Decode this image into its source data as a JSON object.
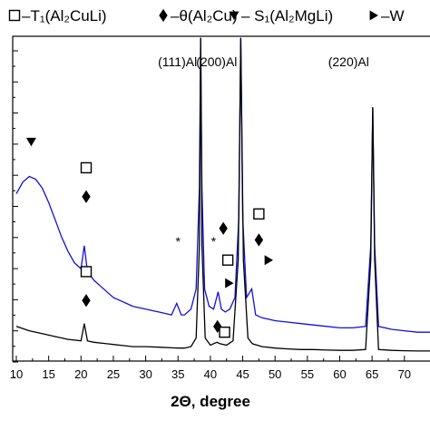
{
  "chart_data": {
    "type": "line",
    "xlabel": "2Θ, degree",
    "ylabel": "",
    "xlim": [
      10,
      75
    ],
    "x_ticks": [
      10,
      15,
      20,
      25,
      30,
      35,
      40,
      45,
      50,
      55,
      60,
      65,
      70
    ],
    "y_tick_count": 11,
    "grid": false,
    "legend": {
      "placement": "top",
      "entries": [
        {
          "marker": "open-square",
          "label": "–T₁(Al₂CuLi)"
        },
        {
          "marker": "diamond",
          "label": "–θ(Al₂Cu)"
        },
        {
          "marker": "down-triangle",
          "label": "– S₁(Al₂MgLi)"
        },
        {
          "marker": "right-triangle",
          "label": "–W"
        }
      ]
    },
    "peak_labels": [
      {
        "text": "(111)Al",
        "x": 38.5
      },
      {
        "text": "(200)Al",
        "x": 44.7
      },
      {
        "text": "(220)Al",
        "x": 65.1
      }
    ],
    "series": [
      {
        "color": "#1010e0",
        "points": [
          [
            10,
            0.58
          ],
          [
            11,
            0.62
          ],
          [
            12,
            0.64
          ],
          [
            13,
            0.63
          ],
          [
            14,
            0.6
          ],
          [
            15,
            0.55
          ],
          [
            16,
            0.49
          ],
          [
            17,
            0.43
          ],
          [
            18,
            0.38
          ],
          [
            19,
            0.34
          ],
          [
            20,
            0.32
          ],
          [
            20.5,
            0.4
          ],
          [
            21,
            0.31
          ],
          [
            22,
            0.28
          ],
          [
            23,
            0.26
          ],
          [
            24,
            0.24
          ],
          [
            25,
            0.22
          ],
          [
            26,
            0.21
          ],
          [
            27,
            0.2
          ],
          [
            28,
            0.19
          ],
          [
            29,
            0.185
          ],
          [
            30,
            0.18
          ],
          [
            31,
            0.175
          ],
          [
            32,
            0.17
          ],
          [
            33,
            0.165
          ],
          [
            34,
            0.16
          ],
          [
            34.8,
            0.2
          ],
          [
            35.5,
            0.16
          ],
          [
            36,
            0.16
          ],
          [
            37,
            0.18
          ],
          [
            37.8,
            0.25
          ],
          [
            38.3,
            0.6
          ],
          [
            38.5,
            1.12
          ],
          [
            38.7,
            0.6
          ],
          [
            39.1,
            0.25
          ],
          [
            39.8,
            0.19
          ],
          [
            40.5,
            0.18
          ],
          [
            41.2,
            0.24
          ],
          [
            41.7,
            0.18
          ],
          [
            42.3,
            0.17
          ],
          [
            43,
            0.18
          ],
          [
            43.8,
            0.22
          ],
          [
            44.4,
            0.5
          ],
          [
            44.7,
            1.12
          ],
          [
            45.0,
            0.5
          ],
          [
            45.6,
            0.22
          ],
          [
            46.4,
            0.25
          ],
          [
            47,
            0.16
          ],
          [
            48,
            0.15
          ],
          [
            50,
            0.14
          ],
          [
            52,
            0.135
          ],
          [
            54,
            0.13
          ],
          [
            56,
            0.125
          ],
          [
            58,
            0.12
          ],
          [
            60,
            0.115
          ],
          [
            62,
            0.115
          ],
          [
            64,
            0.12
          ],
          [
            64.8,
            0.4
          ],
          [
            65.1,
            0.88
          ],
          [
            65.4,
            0.4
          ],
          [
            66,
            0.12
          ],
          [
            68,
            0.11
          ],
          [
            70,
            0.105
          ],
          [
            72,
            0.1
          ],
          [
            75,
            0.1
          ]
        ]
      },
      {
        "color": "#000000",
        "points": [
          [
            10,
            0.12
          ],
          [
            12,
            0.105
          ],
          [
            14,
            0.095
          ],
          [
            16,
            0.085
          ],
          [
            18,
            0.075
          ],
          [
            20,
            0.07
          ],
          [
            20.5,
            0.13
          ],
          [
            21,
            0.07
          ],
          [
            22,
            0.065
          ],
          [
            24,
            0.06
          ],
          [
            26,
            0.055
          ],
          [
            28,
            0.05
          ],
          [
            30,
            0.05
          ],
          [
            32,
            0.048
          ],
          [
            34,
            0.046
          ],
          [
            35,
            0.045
          ],
          [
            36,
            0.045
          ],
          [
            37,
            0.05
          ],
          [
            37.8,
            0.08
          ],
          [
            38.3,
            0.4
          ],
          [
            38.5,
            1.12
          ],
          [
            38.7,
            0.4
          ],
          [
            39.2,
            0.08
          ],
          [
            40,
            0.055
          ],
          [
            41,
            0.065
          ],
          [
            41.5,
            0.06
          ],
          [
            42.5,
            0.055
          ],
          [
            43.5,
            0.07
          ],
          [
            44.3,
            0.35
          ],
          [
            44.7,
            1.12
          ],
          [
            45.1,
            0.35
          ],
          [
            45.8,
            0.08
          ],
          [
            46.5,
            0.06
          ],
          [
            48,
            0.05
          ],
          [
            50,
            0.045
          ],
          [
            52,
            0.042
          ],
          [
            54,
            0.04
          ],
          [
            56,
            0.04
          ],
          [
            58,
            0.038
          ],
          [
            60,
            0.037
          ],
          [
            62,
            0.037
          ],
          [
            64,
            0.04
          ],
          [
            64.8,
            0.35
          ],
          [
            65.1,
            0.88
          ],
          [
            65.4,
            0.35
          ],
          [
            66,
            0.04
          ],
          [
            68,
            0.037
          ],
          [
            70,
            0.036
          ],
          [
            72,
            0.035
          ],
          [
            75,
            0.035
          ]
        ]
      }
    ],
    "phase_markers": [
      {
        "marker": "down-triangle",
        "x": 12.3,
        "y": 0.76
      },
      {
        "marker": "open-square",
        "x": 20.8,
        "y": 0.67
      },
      {
        "marker": "diamond",
        "x": 20.8,
        "y": 0.57
      },
      {
        "marker": "open-square",
        "x": 20.8,
        "y": 0.31
      },
      {
        "marker": "diamond",
        "x": 20.8,
        "y": 0.21
      },
      {
        "marker": "diamond",
        "x": 42.0,
        "y": 0.46
      },
      {
        "marker": "diamond",
        "x": 41.1,
        "y": 0.12
      },
      {
        "marker": "open-square",
        "x": 42.2,
        "y": 0.1
      },
      {
        "marker": "open-square",
        "x": 42.7,
        "y": 0.35
      },
      {
        "marker": "right-triangle",
        "x": 42.9,
        "y": 0.27
      },
      {
        "marker": "open-square",
        "x": 47.5,
        "y": 0.51
      },
      {
        "marker": "diamond",
        "x": 47.5,
        "y": 0.42
      },
      {
        "marker": "right-triangle",
        "x": 49.0,
        "y": 0.35
      }
    ],
    "asterisks": [
      {
        "text": "*",
        "x": 35.0,
        "y": 0.4
      },
      {
        "text": "*",
        "x": 40.5,
        "y": 0.4
      }
    ]
  }
}
